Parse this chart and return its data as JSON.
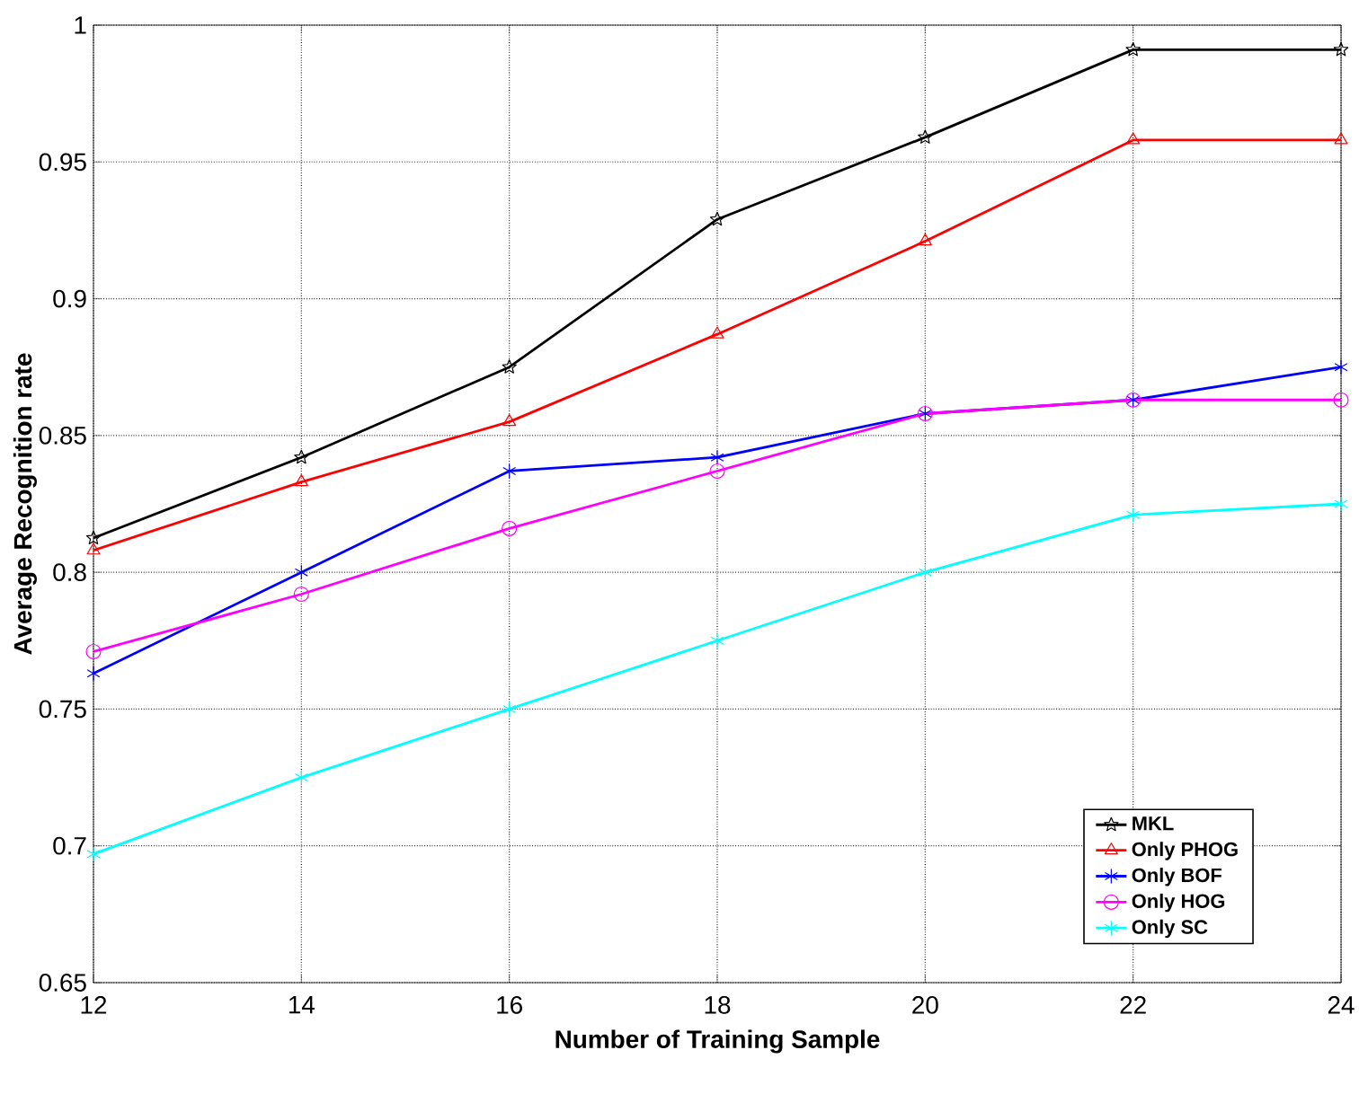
{
  "chart_data": {
    "type": "line",
    "xlabel": "Number of Training Sample",
    "ylabel": "Average Recognition rate",
    "x": [
      12,
      14,
      16,
      18,
      20,
      22,
      24
    ],
    "series": [
      {
        "name": "MKL",
        "color": "#000000",
        "marker": "star",
        "values": [
          0.8125,
          0.842,
          0.875,
          0.929,
          0.959,
          0.991,
          0.991
        ]
      },
      {
        "name": "Only PHOG",
        "color": "#ff0000",
        "marker": "triangle",
        "values": [
          0.808,
          0.833,
          0.855,
          0.887,
          0.921,
          0.958,
          0.958
        ]
      },
      {
        "name": "Only BOF",
        "color": "#0000ff",
        "marker": "cross",
        "values": [
          0.763,
          0.8,
          0.837,
          0.842,
          0.858,
          0.863,
          0.875
        ]
      },
      {
        "name": "Only HOG",
        "color": "#ff00ff",
        "marker": "circle",
        "values": [
          0.771,
          0.792,
          0.816,
          0.837,
          0.858,
          0.863,
          0.863
        ]
      },
      {
        "name": "Only SC",
        "color": "#00ffff",
        "marker": "cross",
        "values": [
          0.697,
          0.725,
          0.75,
          0.775,
          0.8,
          0.821,
          0.825
        ]
      }
    ],
    "xlim": [
      12,
      24
    ],
    "xticks": [
      12,
      14,
      16,
      18,
      20,
      22,
      24
    ],
    "ylim": [
      0.65,
      1
    ],
    "yticks": [
      0.65,
      0.7,
      0.75,
      0.8,
      0.85,
      0.9,
      0.95,
      1
    ],
    "grid": true,
    "legend": "bottom right",
    "line_style": "solid"
  }
}
